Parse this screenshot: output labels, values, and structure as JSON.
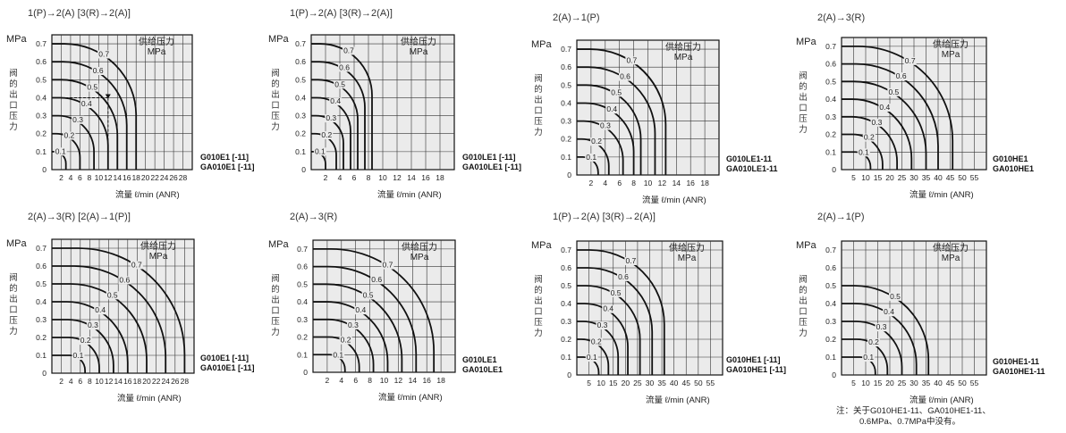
{
  "common": {
    "y_unit": "MPa",
    "y_label": "阀的出口压力",
    "x_label": "流量 ℓ/min (ANR)",
    "legend_title": "供给压力",
    "legend_unit": "MPa"
  },
  "note": {
    "line1": "注：关于G010HE1-11、GA010HE1-11、",
    "line2": "0.6MPa、0.7MPa中没有。"
  },
  "chart_data": [
    {
      "type": "line",
      "title": "1(P)→2(A) [3(R)→2(A)]",
      "model_lines": [
        "G010E1 [-11]",
        "GA010E1 [-11]"
      ],
      "xlim": [
        0,
        30
      ],
      "ylim": [
        0,
        0.75
      ],
      "x_ticks": [
        2,
        4,
        6,
        8,
        10,
        12,
        14,
        16,
        18,
        20,
        22,
        24,
        26,
        28
      ],
      "y_ticks": [
        0,
        0.1,
        0.2,
        0.3,
        0.4,
        0.5,
        0.6,
        0.7
      ],
      "example_path": {
        "x": 12,
        "y": 0.4
      },
      "series": [
        {
          "name": "0.1",
          "plateau": 0.1,
          "max_flow": 3
        },
        {
          "name": "0.2",
          "plateau": 0.2,
          "max_flow": 6
        },
        {
          "name": "0.3",
          "plateau": 0.3,
          "max_flow": 9
        },
        {
          "name": "0.4",
          "plateau": 0.4,
          "max_flow": 12
        },
        {
          "name": "0.5",
          "plateau": 0.5,
          "max_flow": 14
        },
        {
          "name": "0.6",
          "plateau": 0.6,
          "max_flow": 16
        },
        {
          "name": "0.7",
          "plateau": 0.7,
          "max_flow": 18
        }
      ]
    },
    {
      "type": "line",
      "title": "1(P)→2(A) [3(R)→2(A)]",
      "model_lines": [
        "G010LE1 [-11]",
        "GA010LE1 [-11]"
      ],
      "xlim": [
        0,
        20
      ],
      "ylim": [
        0,
        0.75
      ],
      "x_ticks": [
        2,
        4,
        6,
        8,
        10,
        12,
        14,
        16,
        18
      ],
      "y_ticks": [
        0,
        0.1,
        0.2,
        0.3,
        0.4,
        0.5,
        0.6,
        0.7
      ],
      "series": [
        {
          "name": "0.1",
          "plateau": 0.1,
          "max_flow": 2
        },
        {
          "name": "0.2",
          "plateau": 0.2,
          "max_flow": 3.5
        },
        {
          "name": "0.3",
          "plateau": 0.3,
          "max_flow": 4.5
        },
        {
          "name": "0.4",
          "plateau": 0.4,
          "max_flow": 5.5
        },
        {
          "name": "0.5",
          "plateau": 0.5,
          "max_flow": 6.5
        },
        {
          "name": "0.6",
          "plateau": 0.6,
          "max_flow": 7.5
        },
        {
          "name": "0.7",
          "plateau": 0.7,
          "max_flow": 8.5
        }
      ]
    },
    {
      "type": "line",
      "title": "2(A)→1(P)",
      "model_lines": [
        "G010LE1-11",
        "GA010LE1-11"
      ],
      "xlim": [
        0,
        20
      ],
      "ylim": [
        0,
        0.75
      ],
      "x_ticks": [
        2,
        4,
        6,
        8,
        10,
        12,
        14,
        16,
        18
      ],
      "y_ticks": [
        0,
        0.1,
        0.2,
        0.3,
        0.4,
        0.5,
        0.6,
        0.7
      ],
      "series": [
        {
          "name": "0.1",
          "plateau": 0.1,
          "max_flow": 3
        },
        {
          "name": "0.2",
          "plateau": 0.2,
          "max_flow": 4.5
        },
        {
          "name": "0.3",
          "plateau": 0.3,
          "max_flow": 6.5
        },
        {
          "name": "0.4",
          "plateau": 0.4,
          "max_flow": 8
        },
        {
          "name": "0.5",
          "plateau": 0.5,
          "max_flow": 9
        },
        {
          "name": "0.6",
          "plateau": 0.6,
          "max_flow": 11
        },
        {
          "name": "0.7",
          "plateau": 0.7,
          "max_flow": 12.5
        }
      ]
    },
    {
      "type": "line",
      "title": "2(A)→3(R)",
      "model_lines": [
        "G010HE1",
        "GA010HE1"
      ],
      "xlim": [
        0,
        60
      ],
      "ylim": [
        0,
        0.75
      ],
      "x_ticks": [
        5,
        10,
        15,
        20,
        25,
        30,
        35,
        40,
        45,
        50,
        55
      ],
      "y_ticks": [
        0,
        0.1,
        0.2,
        0.3,
        0.4,
        0.5,
        0.6,
        0.7
      ],
      "series": [
        {
          "name": "0.1",
          "plateau": 0.1,
          "max_flow": 12
        },
        {
          "name": "0.2",
          "plateau": 0.2,
          "max_flow": 17
        },
        {
          "name": "0.3",
          "plateau": 0.3,
          "max_flow": 23
        },
        {
          "name": "0.4",
          "plateau": 0.4,
          "max_flow": 29
        },
        {
          "name": "0.5",
          "plateau": 0.5,
          "max_flow": 35
        },
        {
          "name": "0.6",
          "plateau": 0.6,
          "max_flow": 40
        },
        {
          "name": "0.7",
          "plateau": 0.7,
          "max_flow": 46
        }
      ]
    },
    {
      "type": "line",
      "title": "2(A)→3(R) [2(A)→1(P)]",
      "model_lines": [
        "G010E1 [-11]",
        "GA010E1 [-11]"
      ],
      "xlim": [
        0,
        30
      ],
      "ylim": [
        0,
        0.75
      ],
      "x_ticks": [
        2,
        4,
        6,
        8,
        10,
        12,
        14,
        16,
        18,
        20,
        22,
        24,
        26,
        28
      ],
      "y_ticks": [
        0,
        0.1,
        0.2,
        0.3,
        0.4,
        0.5,
        0.6,
        0.7
      ],
      "series": [
        {
          "name": "0.1",
          "plateau": 0.1,
          "max_flow": 7
        },
        {
          "name": "0.2",
          "plateau": 0.2,
          "max_flow": 10
        },
        {
          "name": "0.3",
          "plateau": 0.3,
          "max_flow": 13
        },
        {
          "name": "0.4",
          "plateau": 0.4,
          "max_flow": 16
        },
        {
          "name": "0.5",
          "plateau": 0.5,
          "max_flow": 20
        },
        {
          "name": "0.6",
          "plateau": 0.6,
          "max_flow": 24
        },
        {
          "name": "0.7",
          "plateau": 0.7,
          "max_flow": 28
        }
      ]
    },
    {
      "type": "line",
      "title": "2(A)→3(R)",
      "model_lines": [
        "G010LE1",
        "GA010LE1"
      ],
      "xlim": [
        0,
        20
      ],
      "ylim": [
        0,
        0.75
      ],
      "x_ticks": [
        2,
        4,
        6,
        8,
        10,
        12,
        14,
        16,
        18
      ],
      "y_ticks": [
        0,
        0.1,
        0.2,
        0.3,
        0.4,
        0.5,
        0.6,
        0.7
      ],
      "series": [
        {
          "name": "0.1",
          "plateau": 0.1,
          "max_flow": 4.5
        },
        {
          "name": "0.2",
          "plateau": 0.2,
          "max_flow": 6.5
        },
        {
          "name": "0.3",
          "plateau": 0.3,
          "max_flow": 8.5
        },
        {
          "name": "0.4",
          "plateau": 0.4,
          "max_flow": 10.5
        },
        {
          "name": "0.5",
          "plateau": 0.5,
          "max_flow": 12.5
        },
        {
          "name": "0.6",
          "plateau": 0.6,
          "max_flow": 14.5
        },
        {
          "name": "0.7",
          "plateau": 0.7,
          "max_flow": 17
        }
      ]
    },
    {
      "type": "line",
      "title": "1(P)→2(A) [3(R)→2(A)]",
      "model_lines": [
        "G010HE1 [-11]",
        "GA010HE1 [-11]"
      ],
      "xlim": [
        0,
        60
      ],
      "ylim": [
        0,
        0.75
      ],
      "x_ticks": [
        5,
        10,
        15,
        20,
        25,
        30,
        35,
        40,
        45,
        50,
        55
      ],
      "y_ticks": [
        0,
        0.1,
        0.2,
        0.3,
        0.4,
        0.5,
        0.6,
        0.7
      ],
      "series": [
        {
          "name": "0.1",
          "plateau": 0.1,
          "max_flow": 9
        },
        {
          "name": "0.2",
          "plateau": 0.2,
          "max_flow": 13
        },
        {
          "name": "0.3",
          "plateau": 0.3,
          "max_flow": 17
        },
        {
          "name": "0.4",
          "plateau": 0.4,
          "max_flow": 21
        },
        {
          "name": "0.5",
          "plateau": 0.5,
          "max_flow": 26
        },
        {
          "name": "0.6",
          "plateau": 0.6,
          "max_flow": 31
        },
        {
          "name": "0.7",
          "plateau": 0.7,
          "max_flow": 36
        }
      ]
    },
    {
      "type": "line",
      "title": "2(A)→1(P)",
      "model_lines": [
        "G010HE1-11",
        "GA010HE1-11"
      ],
      "xlim": [
        0,
        60
      ],
      "ylim": [
        0,
        0.75
      ],
      "x_ticks": [
        5,
        10,
        15,
        20,
        25,
        30,
        35,
        40,
        45,
        50,
        55
      ],
      "y_ticks": [
        0,
        0.1,
        0.2,
        0.3,
        0.4,
        0.5,
        0.6,
        0.7
      ],
      "series": [
        {
          "name": "0.1",
          "plateau": 0.1,
          "max_flow": 14
        },
        {
          "name": "0.2",
          "plateau": 0.2,
          "max_flow": 19
        },
        {
          "name": "0.3",
          "plateau": 0.3,
          "max_flow": 25
        },
        {
          "name": "0.4",
          "plateau": 0.4,
          "max_flow": 31
        },
        {
          "name": "0.5",
          "plateau": 0.5,
          "max_flow": 36
        }
      ]
    }
  ]
}
